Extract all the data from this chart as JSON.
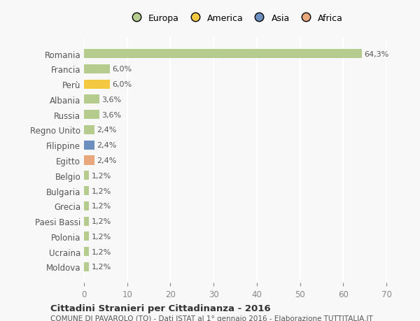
{
  "countries": [
    "Romania",
    "Francia",
    "Perù",
    "Albania",
    "Russia",
    "Regno Unito",
    "Filippine",
    "Egitto",
    "Belgio",
    "Bulgaria",
    "Grecia",
    "Paesi Bassi",
    "Polonia",
    "Ucraina",
    "Moldova"
  ],
  "values": [
    64.3,
    6.0,
    6.0,
    3.6,
    3.6,
    2.4,
    2.4,
    2.4,
    1.2,
    1.2,
    1.2,
    1.2,
    1.2,
    1.2,
    1.2
  ],
  "labels": [
    "64,3%",
    "6,0%",
    "6,0%",
    "3,6%",
    "3,6%",
    "2,4%",
    "2,4%",
    "2,4%",
    "1,2%",
    "1,2%",
    "1,2%",
    "1,2%",
    "1,2%",
    "1,2%",
    "1,2%"
  ],
  "continents": [
    "Europa",
    "Europa",
    "America",
    "Europa",
    "Europa",
    "Europa",
    "Asia",
    "Africa",
    "Europa",
    "Europa",
    "Europa",
    "Europa",
    "Europa",
    "Europa",
    "Europa"
  ],
  "colors": {
    "Europa": "#b5cc8e",
    "America": "#f5c842",
    "Asia": "#6b8fbf",
    "Africa": "#e8a87c"
  },
  "xlim": [
    0,
    70
  ],
  "xticks": [
    0,
    10,
    20,
    30,
    40,
    50,
    60,
    70
  ],
  "title": "Cittadini Stranieri per Cittadinanza - 2016",
  "subtitle": "COMUNE DI PAVAROLO (TO) - Dati ISTAT al 1° gennaio 2016 - Elaborazione TUTTITALIA.IT",
  "background_color": "#f8f8f8",
  "grid_color": "#ffffff",
  "bar_height": 0.6,
  "legend_order": [
    "Europa",
    "America",
    "Asia",
    "Africa"
  ]
}
